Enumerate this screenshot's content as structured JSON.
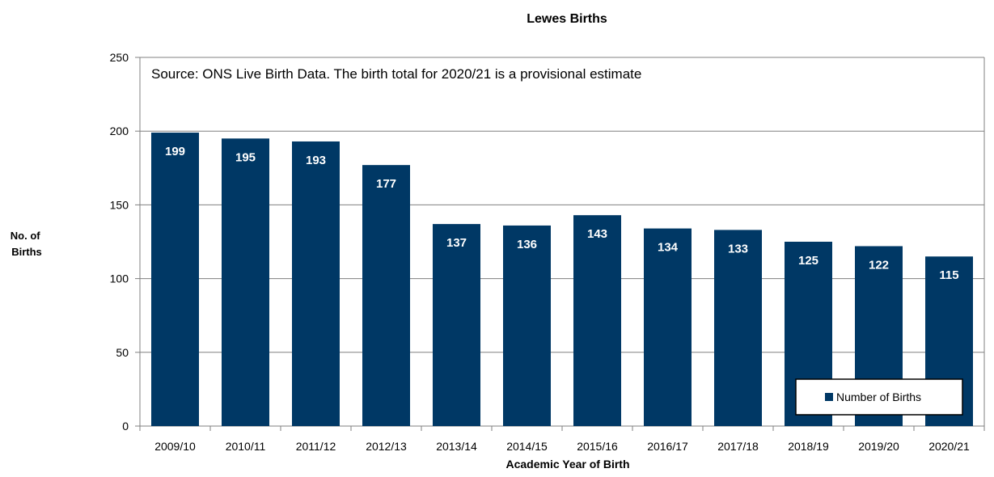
{
  "chart_data": {
    "type": "bar",
    "title": "Lewes Births",
    "xlabel": "Academic Year of Birth",
    "ylabel_lines": [
      "No. of",
      "Births"
    ],
    "annotation": "Source: ONS Live Birth Data.  The birth total for 2020/21 is a provisional estimate",
    "categories": [
      "2009/10",
      "2010/11",
      "2011/12",
      "2012/13",
      "2013/14",
      "2014/15",
      "2015/16",
      "2016/17",
      "2017/18",
      "2018/19",
      "2019/20",
      "2020/21"
    ],
    "series": [
      {
        "name": "Number of Births",
        "color": "#003865",
        "values": [
          199,
          195,
          193,
          177,
          137,
          136,
          143,
          134,
          133,
          125,
          122,
          115
        ]
      }
    ],
    "ylim": [
      0,
      250
    ],
    "yticks": [
      0,
      50,
      100,
      150,
      200,
      250
    ],
    "grid": true,
    "legend_position": "bottom-right",
    "data_labels": true,
    "colors": {
      "bar": "#003865",
      "grid": "#808080",
      "axis": "#808080",
      "label_inside": "#ffffff",
      "text": "#000000"
    }
  }
}
